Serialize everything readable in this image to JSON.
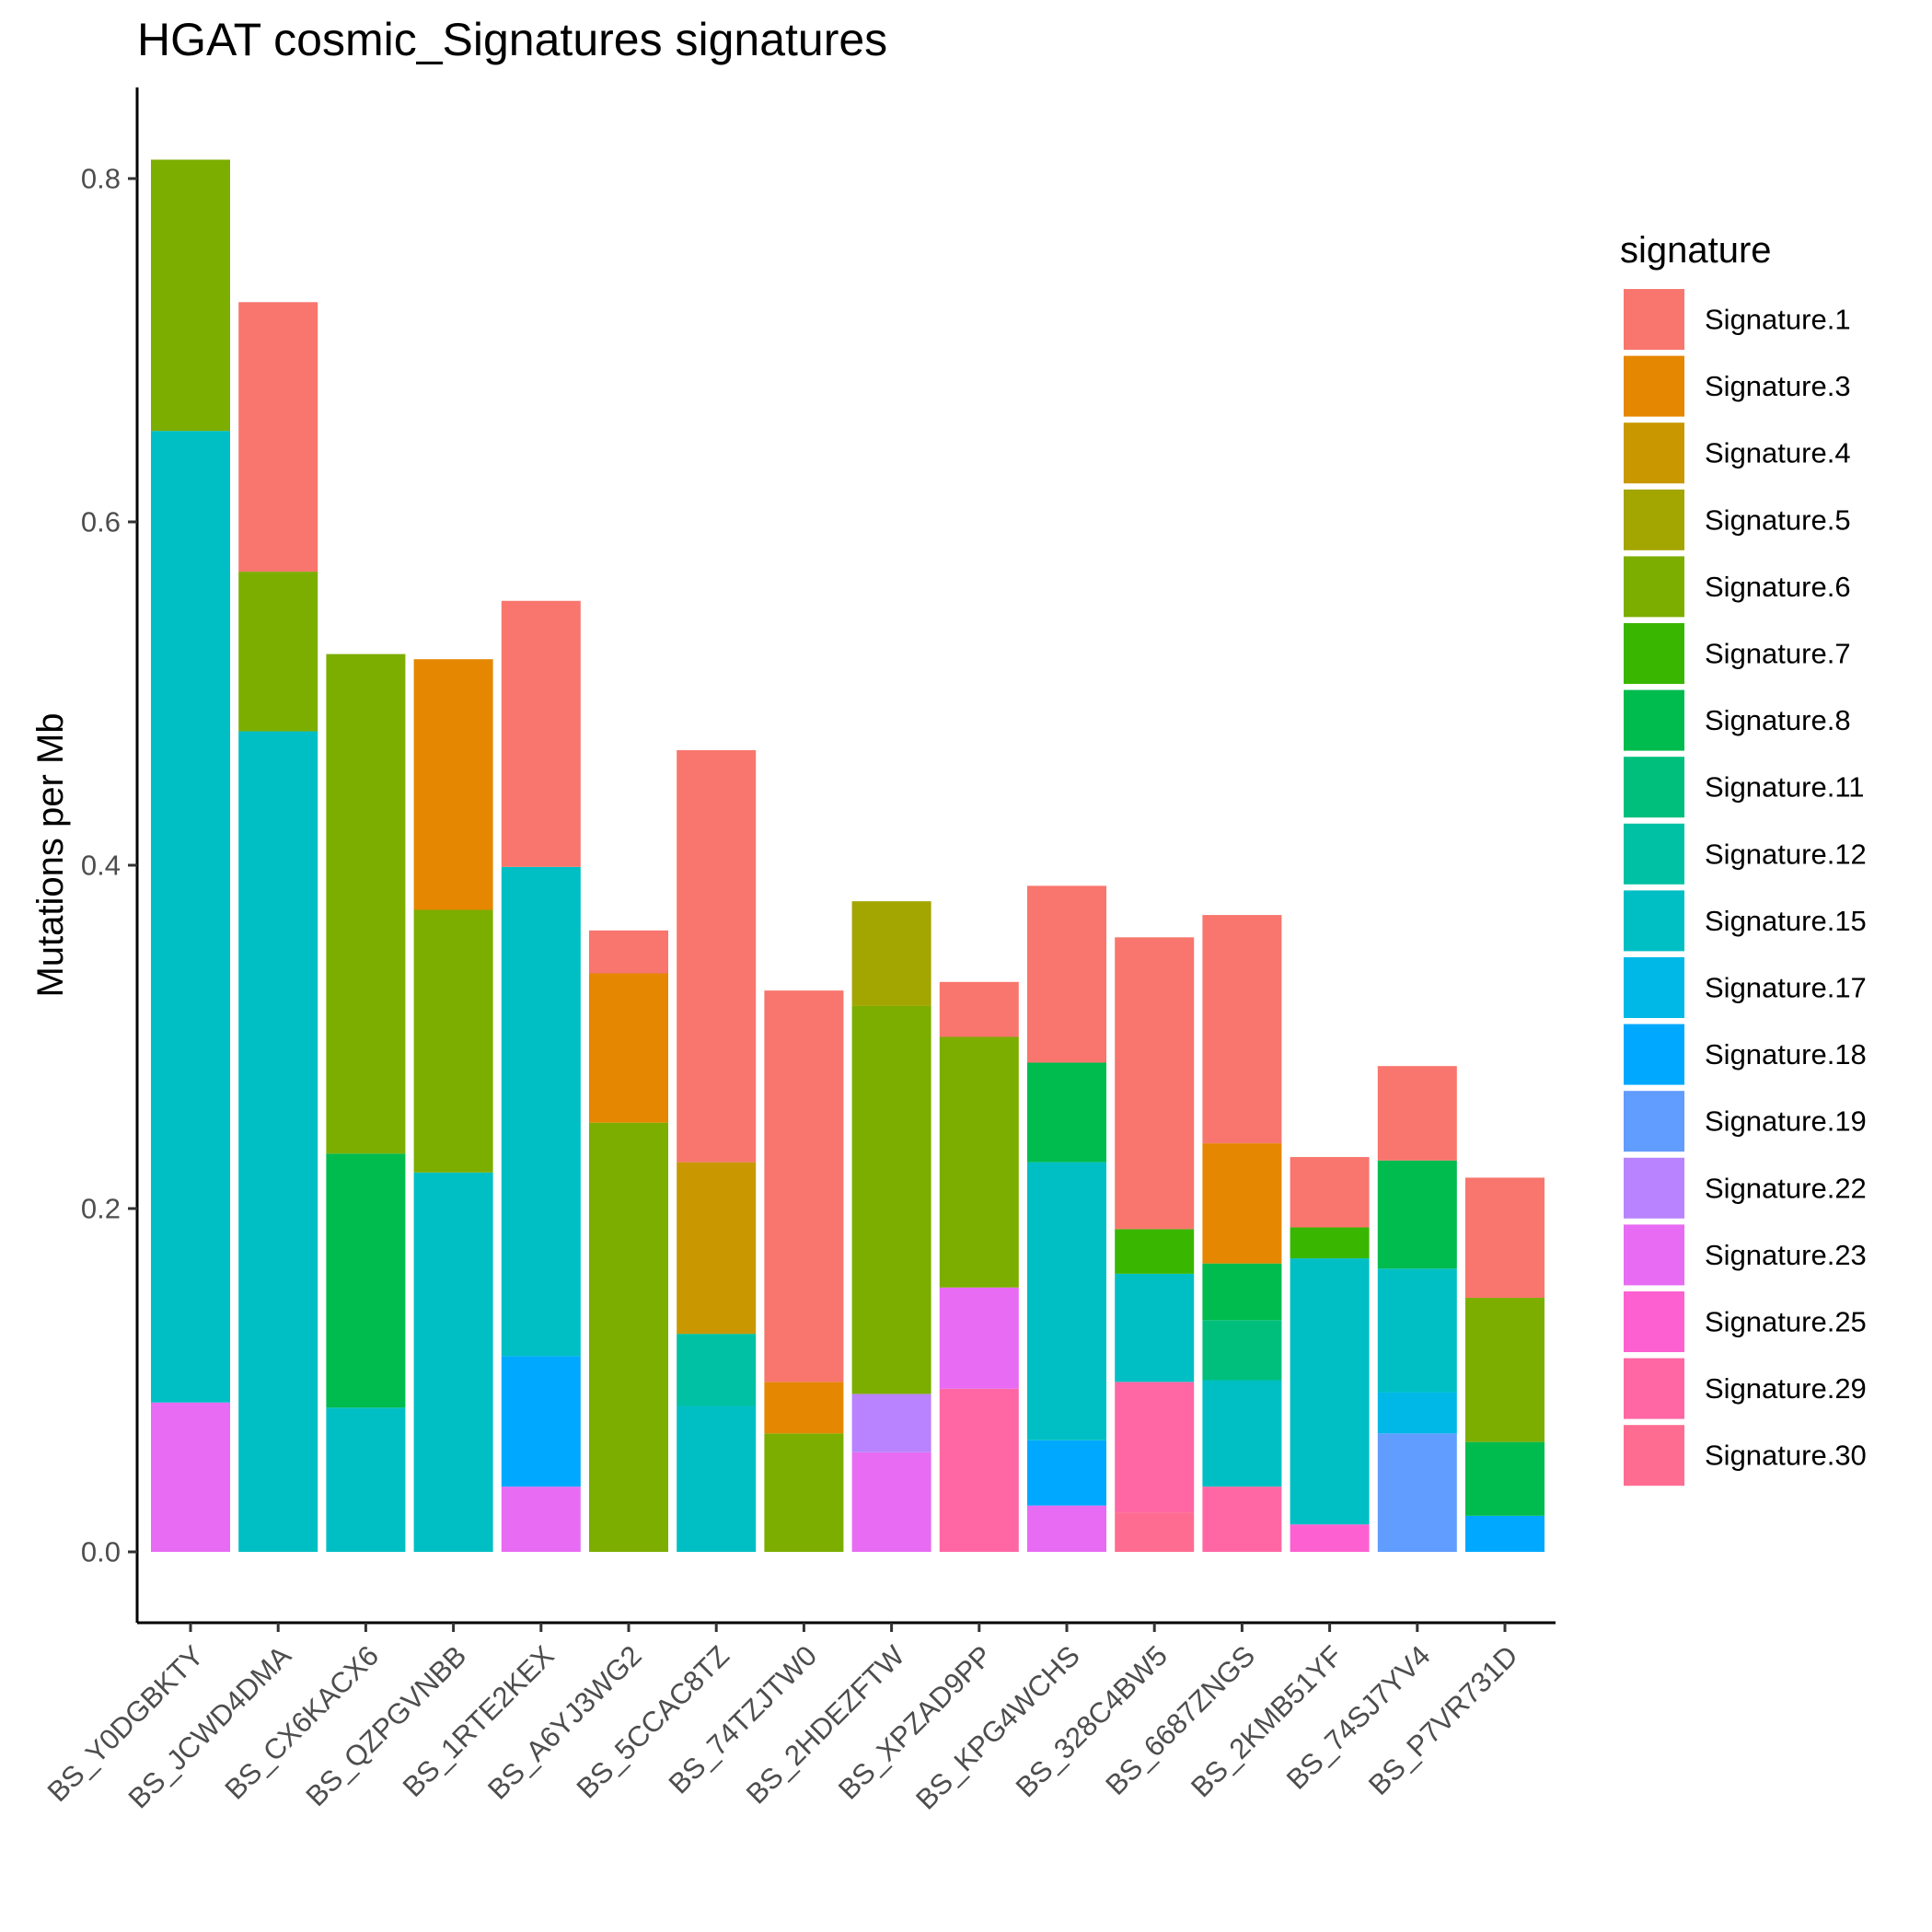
{
  "chart_data": {
    "type": "bar",
    "stacked": true,
    "title": "HGAT cosmic_Signatures signatures",
    "xlabel": "",
    "ylabel": "Mutations per Mb",
    "ylim": [
      -0.04,
      0.85
    ],
    "yticks": [
      0.0,
      0.2,
      0.4,
      0.6,
      0.8
    ],
    "ytick_labels": [
      "0.0",
      "0.2",
      "0.4",
      "0.6",
      "0.8"
    ],
    "legend_title": "signature",
    "legend_position": "right",
    "grid": false,
    "categories": [
      "BS_Y0DGBKTY",
      "BS_JCWD4DMA",
      "BS_CX6KACX6",
      "BS_QZPGVNBB",
      "BS_1RTE2KEX",
      "BS_A6YJ3WG2",
      "BS_5CCAC8TZ",
      "BS_74TZJTW0",
      "BS_2HDEZFTW",
      "BS_XPZAD9PP",
      "BS_KPG4WCHS",
      "BS_328C4BW5",
      "BS_6687ZNGS",
      "BS_2KMB51YF",
      "BS_74SJ7YV4",
      "BS_P7VR731D"
    ],
    "series": [
      {
        "name": "Signature.1",
        "color": "#F8766D",
        "values": [
          0,
          0.157,
          0,
          0,
          0.155,
          0.025,
          0.24,
          0.228,
          0,
          0.032,
          0.103,
          0.17,
          0.133,
          0.041,
          0.055,
          0.07
        ]
      },
      {
        "name": "Signature.3",
        "color": "#E58700",
        "values": [
          0,
          0,
          0,
          0.146,
          0,
          0.087,
          0,
          0.03,
          0,
          0,
          0,
          0,
          0.07,
          0,
          0,
          0
        ]
      },
      {
        "name": "Signature.4",
        "color": "#C99800",
        "values": [
          0,
          0,
          0,
          0,
          0,
          0,
          0.1,
          0,
          0,
          0,
          0,
          0,
          0,
          0,
          0,
          0
        ]
      },
      {
        "name": "Signature.5",
        "color": "#A3A500",
        "values": [
          0,
          0,
          0,
          0,
          0,
          0,
          0,
          0,
          0.061,
          0,
          0,
          0,
          0,
          0,
          0,
          0
        ]
      },
      {
        "name": "Signature.6",
        "color": "#7CAE00",
        "values": [
          0.158,
          0.093,
          0.291,
          0.153,
          0,
          0.25,
          0,
          0.069,
          0.226,
          0.146,
          0,
          0,
          0,
          0,
          0,
          0.084
        ]
      },
      {
        "name": "Signature.7",
        "color": "#39B600",
        "values": [
          0,
          0,
          0,
          0,
          0,
          0,
          0,
          0,
          0,
          0,
          0,
          0.026,
          0,
          0.018,
          0,
          0
        ]
      },
      {
        "name": "Signature.8",
        "color": "#00BB4E",
        "values": [
          0,
          0,
          0.148,
          0,
          0,
          0,
          0,
          0,
          0,
          0,
          0.058,
          0,
          0.033,
          0,
          0.063,
          0.043
        ]
      },
      {
        "name": "Signature.11",
        "color": "#00BF7D",
        "values": [
          0,
          0,
          0,
          0,
          0,
          0,
          0,
          0,
          0,
          0,
          0,
          0,
          0.035,
          0,
          0,
          0
        ]
      },
      {
        "name": "Signature.12",
        "color": "#00C1A3",
        "values": [
          0,
          0,
          0,
          0,
          0,
          0,
          0.042,
          0,
          0,
          0,
          0,
          0,
          0,
          0,
          0,
          0
        ]
      },
      {
        "name": "Signature.15",
        "color": "#00BFC4",
        "values": [
          0.566,
          0.478,
          0.084,
          0.221,
          0.285,
          0,
          0.085,
          0,
          0,
          0,
          0.162,
          0.063,
          0.062,
          0.155,
          0.072,
          0
        ]
      },
      {
        "name": "Signature.17",
        "color": "#00B8E7",
        "values": [
          0,
          0,
          0,
          0,
          0,
          0,
          0,
          0,
          0,
          0,
          0,
          0,
          0,
          0,
          0.024,
          0
        ]
      },
      {
        "name": "Signature.18",
        "color": "#00A9FF",
        "values": [
          0,
          0,
          0,
          0,
          0.076,
          0,
          0,
          0,
          0,
          0,
          0.038,
          0,
          0,
          0,
          0,
          0.021
        ]
      },
      {
        "name": "Signature.19",
        "color": "#619CFF",
        "values": [
          0,
          0,
          0,
          0,
          0,
          0,
          0,
          0,
          0,
          0,
          0,
          0,
          0,
          0,
          0.069,
          0
        ]
      },
      {
        "name": "Signature.22",
        "color": "#B983FF",
        "values": [
          0,
          0,
          0,
          0,
          0,
          0,
          0,
          0,
          0.034,
          0,
          0,
          0,
          0,
          0,
          0,
          0
        ]
      },
      {
        "name": "Signature.23",
        "color": "#E76BF3",
        "values": [
          0.087,
          0,
          0,
          0,
          0.038,
          0,
          0,
          0,
          0.058,
          0.059,
          0.027,
          0,
          0,
          0,
          0,
          0
        ]
      },
      {
        "name": "Signature.25",
        "color": "#FD61D1",
        "values": [
          0,
          0,
          0,
          0,
          0,
          0,
          0,
          0,
          0,
          0,
          0,
          0,
          0,
          0.016,
          0,
          0
        ]
      },
      {
        "name": "Signature.29",
        "color": "#FF67A4",
        "values": [
          0,
          0,
          0,
          0,
          0,
          0,
          0,
          0,
          0,
          0.095,
          0,
          0.076,
          0.038,
          0,
          0,
          0
        ]
      },
      {
        "name": "Signature.30",
        "color": "#FF6C91",
        "values": [
          0,
          0,
          0,
          0,
          0,
          0,
          0,
          0,
          0,
          0,
          0,
          0.023,
          0,
          0,
          0,
          0
        ]
      }
    ]
  }
}
